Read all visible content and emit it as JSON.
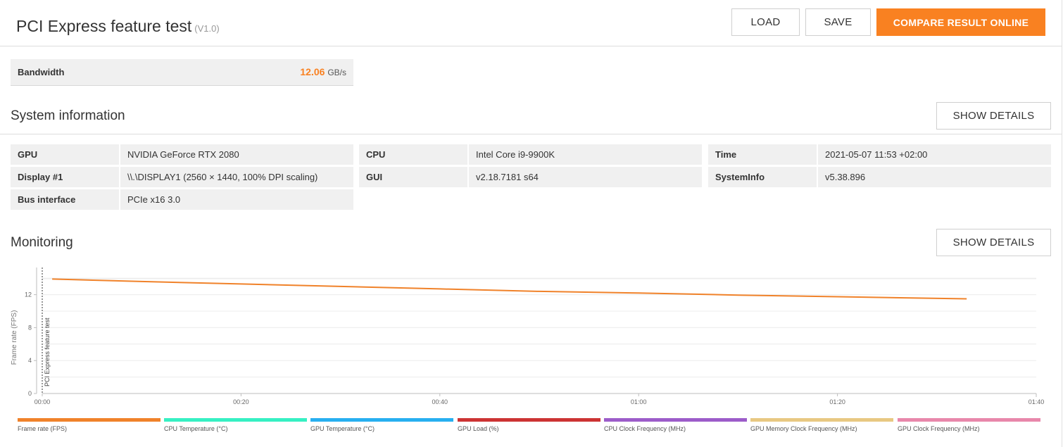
{
  "header": {
    "title": "PCI Express feature test",
    "version": "(V1.0)",
    "load_label": "LOAD",
    "save_label": "SAVE",
    "compare_label": "COMPARE RESULT ONLINE"
  },
  "bandwidth": {
    "label": "Bandwidth",
    "value": "12.06",
    "unit": "GB/s"
  },
  "system_info": {
    "title": "System information",
    "show_details_label": "SHOW DETAILS",
    "columns": [
      [
        {
          "key": "GPU",
          "value": "NVIDIA GeForce RTX 2080"
        },
        {
          "key": "Display #1",
          "value": "\\\\.\\DISPLAY1 (2560 × 1440, 100% DPI scaling)"
        },
        {
          "key": "Bus interface",
          "value": "PCIe x16 3.0"
        }
      ],
      [
        {
          "key": "CPU",
          "value": "Intel Core i9-9900K"
        },
        {
          "key": "GUI",
          "value": "v2.18.7181 s64"
        }
      ],
      [
        {
          "key": "Time",
          "value": "2021-05-07 11:53 +02:00"
        },
        {
          "key": "SystemInfo",
          "value": "v5.38.896"
        }
      ]
    ]
  },
  "monitoring": {
    "title": "Monitoring",
    "show_details_label": "SHOW DETAILS"
  },
  "chart_data": {
    "type": "line",
    "ylabel": "Frame rate (FPS)",
    "xlabel": "",
    "x_tick_labels": [
      "00:00",
      "00:20",
      "00:40",
      "01:00",
      "01:20",
      "01:40"
    ],
    "x_tick_seconds": [
      0,
      20,
      40,
      60,
      80,
      100
    ],
    "y_tick_labels": [
      "0",
      "4",
      "8",
      "12"
    ],
    "y_ticks": [
      0,
      4,
      8,
      12
    ],
    "xlim": [
      0,
      100
    ],
    "ylim": [
      0,
      15.3
    ],
    "grid": true,
    "marker_label": "PCI Express feature test",
    "marker_x": 0,
    "series": [
      {
        "name": "Frame rate (FPS)",
        "color": "#f0822a",
        "x": [
          1,
          10,
          20,
          30,
          40,
          50,
          60,
          70,
          80,
          93
        ],
        "y": [
          13.9,
          13.6,
          13.3,
          13.0,
          12.7,
          12.4,
          12.2,
          11.95,
          11.75,
          11.5
        ]
      }
    ]
  },
  "legend": {
    "items": [
      {
        "label": "Frame rate (FPS)",
        "color": "#f0822a"
      },
      {
        "label": "CPU Temperature (°C)",
        "color": "#36f0c3"
      },
      {
        "label": "GPU Temperature (°C)",
        "color": "#27aff0"
      },
      {
        "label": "GPU Load (%)",
        "color": "#cc3333"
      },
      {
        "label": "CPU Clock Frequency (MHz)",
        "color": "#9c5cc9"
      },
      {
        "label": "GPU Memory Clock Frequency (MHz)",
        "color": "#e8c882"
      },
      {
        "label": "GPU Clock Frequency (MHz)",
        "color": "#e887ab"
      }
    ]
  }
}
